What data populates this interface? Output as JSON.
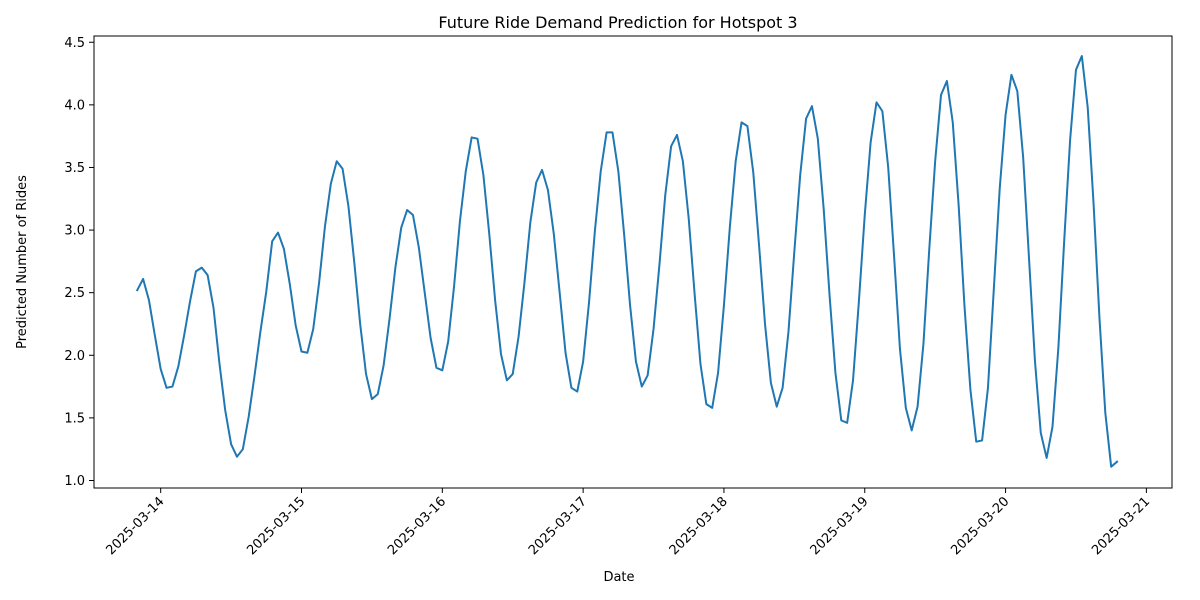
{
  "chart_data": {
    "type": "line",
    "title": "Future Ride Demand Prediction for Hotspot 3",
    "xlabel": "Date",
    "ylabel": "Predicted Number of Rides",
    "x_tick_labels": [
      "2025-03-14",
      "2025-03-15",
      "2025-03-16",
      "2025-03-17",
      "2025-03-18",
      "2025-03-19",
      "2025-03-20",
      "2025-03-21"
    ],
    "y_tick_labels": [
      "1.0",
      "1.5",
      "2.0",
      "2.5",
      "3.0",
      "3.5",
      "4.0",
      "4.5"
    ],
    "y_ticks": [
      1.0,
      1.5,
      2.0,
      2.5,
      3.0,
      3.5,
      4.0,
      4.5
    ],
    "xlim": [
      "2025-03-13 12:38",
      "2025-03-21 04:22"
    ],
    "ylim": [
      0.94,
      4.55
    ],
    "grid": false,
    "legend": "none",
    "series": [
      {
        "color": "#1f77b4",
        "x_start": "2025-03-13 20:00",
        "x_step_hours": 1,
        "values": [
          2.52,
          2.61,
          2.44,
          2.16,
          1.89,
          1.74,
          1.75,
          1.91,
          2.16,
          2.43,
          2.67,
          2.7,
          2.64,
          2.38,
          1.94,
          1.56,
          1.29,
          1.19,
          1.25,
          1.51,
          1.84,
          2.19,
          2.51,
          2.91,
          2.98,
          2.85,
          2.57,
          2.24,
          2.03,
          2.02,
          2.21,
          2.58,
          3.03,
          3.37,
          3.55,
          3.49,
          3.19,
          2.74,
          2.25,
          1.85,
          1.65,
          1.69,
          1.92,
          2.29,
          2.7,
          3.02,
          3.16,
          3.12,
          2.86,
          2.5,
          2.14,
          1.9,
          1.88,
          2.11,
          2.55,
          3.07,
          3.47,
          3.74,
          3.73,
          3.44,
          2.97,
          2.44,
          2.01,
          1.8,
          1.85,
          2.15,
          2.58,
          3.06,
          3.38,
          3.48,
          3.32,
          2.97,
          2.5,
          2.02,
          1.74,
          1.71,
          1.95,
          2.42,
          2.99,
          3.47,
          3.78,
          3.78,
          3.47,
          2.96,
          2.4,
          1.95,
          1.75,
          1.84,
          2.21,
          2.72,
          3.28,
          3.67,
          3.76,
          3.55,
          3.09,
          2.49,
          1.93,
          1.61,
          1.58,
          1.86,
          2.4,
          3.02,
          3.55,
          3.86,
          3.83,
          3.46,
          2.87,
          2.25,
          1.78,
          1.59,
          1.74,
          2.19,
          2.83,
          3.44,
          3.89,
          3.99,
          3.73,
          3.17,
          2.48,
          1.86,
          1.48,
          1.46,
          1.8,
          2.43,
          3.12,
          3.7,
          4.02,
          3.95,
          3.5,
          2.79,
          2.05,
          1.58,
          1.4,
          1.59,
          2.09,
          2.85,
          3.55,
          4.08,
          4.19,
          3.86,
          3.2,
          2.39,
          1.73,
          1.31,
          1.32,
          1.74,
          2.53,
          3.33,
          3.92,
          4.24,
          4.11,
          3.58,
          2.77,
          1.96,
          1.38,
          1.18,
          1.43,
          2.06,
          2.92,
          3.72,
          4.28,
          4.39,
          3.98,
          3.21,
          2.3,
          1.54,
          1.11,
          1.15
        ]
      }
    ]
  }
}
